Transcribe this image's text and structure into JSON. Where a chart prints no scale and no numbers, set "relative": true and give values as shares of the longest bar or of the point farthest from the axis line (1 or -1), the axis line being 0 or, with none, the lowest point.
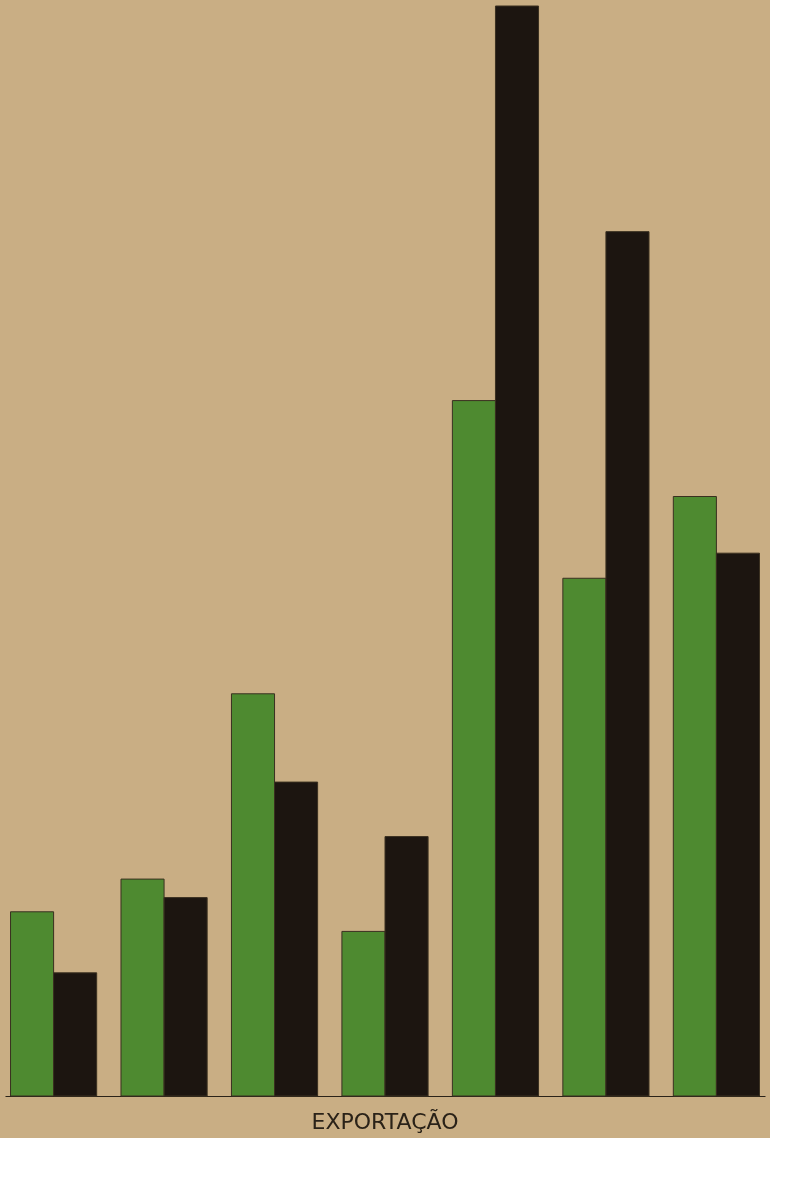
{
  "chart_data": {
    "type": "bar",
    "title": "EXPORTAÇÃO",
    "relative": true,
    "legend": false,
    "grid": false,
    "categories": [
      null,
      null,
      null,
      null,
      null,
      null,
      null
    ],
    "series": [
      {
        "color": "#4e8a30",
        "values": [
          0.169,
          0.199,
          0.369,
          0.151,
          0.638,
          0.475,
          0.55
        ]
      },
      {
        "color": "#1c1510",
        "values": [
          0.113,
          0.182,
          0.288,
          0.238,
          1.0,
          0.793,
          0.498
        ]
      }
    ]
  }
}
